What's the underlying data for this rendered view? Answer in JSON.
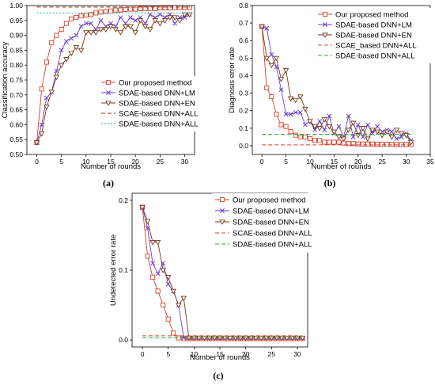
{
  "panel_labels": [
    "(a)",
    "(b)",
    "(c)"
  ],
  "chart_data": [
    {
      "type": "line",
      "panel": "(a)",
      "title": "",
      "xlabel": "Number of rounds",
      "ylabel": "Classification accuracy",
      "xlim": [
        -2,
        32
      ],
      "ylim": [
        0.5,
        1.0
      ],
      "xticks": [
        0,
        5,
        10,
        15,
        20,
        25,
        30
      ],
      "yticks": [
        0.5,
        0.55,
        0.6,
        0.65,
        0.7,
        0.75,
        0.8,
        0.85,
        0.9,
        0.95,
        1.0
      ],
      "ytick_decimals": 2,
      "legend_position": "bottom-right",
      "grid": false,
      "series": [
        {
          "name": "Our proposed method",
          "color": "#d9412b",
          "style": "solid",
          "marker": "square",
          "x": [
            0,
            1,
            2,
            3,
            4,
            5,
            6,
            7,
            8,
            9,
            10,
            11,
            12,
            13,
            14,
            15,
            16,
            17,
            18,
            19,
            20,
            21,
            22,
            23,
            24,
            25,
            26,
            27,
            28,
            29,
            30,
            31
          ],
          "y": [
            0.54,
            0.72,
            0.81,
            0.875,
            0.9,
            0.92,
            0.94,
            0.955,
            0.96,
            0.965,
            0.968,
            0.97,
            0.975,
            0.978,
            0.98,
            0.982,
            0.985,
            0.985,
            0.987,
            0.988,
            0.988,
            0.99,
            0.99,
            0.99,
            0.99,
            0.992,
            0.992,
            0.992,
            0.993,
            0.993,
            0.993,
            0.993
          ]
        },
        {
          "name": "SDAE-based DNN+LM",
          "color": "#6a3fd0",
          "style": "solid",
          "marker": "x",
          "x": [
            0,
            1,
            2,
            3,
            4,
            5,
            6,
            7,
            8,
            9,
            10,
            11,
            12,
            13,
            14,
            15,
            16,
            17,
            18,
            19,
            20,
            21,
            22,
            23,
            24,
            25,
            26,
            27,
            28,
            29,
            30,
            31
          ],
          "y": [
            0.54,
            0.6,
            0.69,
            0.71,
            0.78,
            0.85,
            0.88,
            0.89,
            0.9,
            0.93,
            0.94,
            0.94,
            0.92,
            0.95,
            0.93,
            0.94,
            0.93,
            0.96,
            0.94,
            0.96,
            0.95,
            0.96,
            0.94,
            0.97,
            0.96,
            0.97,
            0.96,
            0.97,
            0.94,
            0.96,
            0.96,
            0.97
          ]
        },
        {
          "name": "SDAE-based DNN+EN",
          "color": "#7a3a16",
          "style": "solid",
          "marker": "triangle-down",
          "x": [
            0,
            1,
            2,
            3,
            4,
            5,
            6,
            7,
            8,
            9,
            10,
            11,
            12,
            13,
            14,
            15,
            16,
            17,
            18,
            19,
            20,
            21,
            22,
            23,
            24,
            25,
            26,
            27,
            28,
            29,
            30,
            31
          ],
          "y": [
            0.54,
            0.57,
            0.66,
            0.71,
            0.76,
            0.8,
            0.82,
            0.84,
            0.86,
            0.85,
            0.91,
            0.91,
            0.91,
            0.92,
            0.92,
            0.93,
            0.92,
            0.91,
            0.93,
            0.93,
            0.91,
            0.95,
            0.93,
            0.92,
            0.95,
            0.94,
            0.95,
            0.96,
            0.96,
            0.95,
            0.97,
            0.97
          ]
        },
        {
          "name": "SCAE-based DNN+ALL",
          "color": "#7a3a16",
          "style": "dashed",
          "marker": "none",
          "x": [
            0,
            31
          ],
          "y": [
            0.995,
            0.995
          ]
        },
        {
          "name": "SDAE-based DNN+ALL",
          "color": "#2ab0a0",
          "style": "dotted",
          "marker": "none",
          "x": [
            0,
            31
          ],
          "y": [
            0.975,
            0.975
          ]
        }
      ]
    },
    {
      "type": "line",
      "panel": "(b)",
      "title": "",
      "xlabel": "Number of rounds",
      "ylabel": "Diagnosis error rate",
      "xlim": [
        -2,
        35
      ],
      "ylim": [
        -0.05,
        0.8
      ],
      "xticks": [
        0,
        5,
        10,
        15,
        20,
        25,
        30,
        35
      ],
      "yticks": [
        0.0,
        0.1,
        0.2,
        0.3,
        0.4,
        0.5,
        0.6,
        0.7,
        0.8
      ],
      "ytick_decimals": 1,
      "legend_position": "top-right",
      "grid": false,
      "series": [
        {
          "name": "Our proposed method",
          "color": "#d9412b",
          "style": "solid",
          "marker": "square",
          "x": [
            0,
            1,
            2,
            3,
            4,
            5,
            6,
            7,
            8,
            9,
            10,
            11,
            12,
            13,
            14,
            15,
            16,
            17,
            18,
            19,
            20,
            21,
            22,
            23,
            24,
            25,
            26,
            27,
            28,
            29,
            30,
            31
          ],
          "y": [
            0.68,
            0.33,
            0.28,
            0.18,
            0.12,
            0.11,
            0.08,
            0.06,
            0.05,
            0.05,
            0.04,
            0.03,
            0.03,
            0.02,
            0.02,
            0.02,
            0.02,
            0.015,
            0.012,
            0.012,
            0.01,
            0.01,
            0.01,
            0.01,
            0.008,
            0.008,
            0.008,
            0.008,
            0.007,
            0.007,
            0.007,
            0.007
          ]
        },
        {
          "name": "SDAE-based DNN+LM",
          "color": "#6a3fd0",
          "style": "solid",
          "marker": "x",
          "x": [
            0,
            1,
            2,
            3,
            4,
            5,
            6,
            7,
            8,
            9,
            10,
            11,
            12,
            13,
            14,
            15,
            16,
            17,
            18,
            19,
            20,
            21,
            22,
            23,
            24,
            25,
            26,
            27,
            28,
            29,
            30,
            31
          ],
          "y": [
            0.68,
            0.67,
            0.52,
            0.45,
            0.32,
            0.18,
            0.18,
            0.19,
            0.19,
            0.12,
            0.14,
            0.09,
            0.14,
            0.09,
            0.17,
            0.07,
            0.11,
            0.05,
            0.17,
            0.05,
            0.12,
            0.05,
            0.12,
            0.07,
            0.11,
            0.08,
            0.09,
            0.08,
            0.04,
            0.05,
            0.07,
            0.03
          ]
        },
        {
          "name": "SDAE-based DNN+EN",
          "color": "#7a3a16",
          "style": "solid",
          "marker": "triangle-down",
          "x": [
            0,
            1,
            2,
            3,
            4,
            5,
            6,
            7,
            8,
            9,
            10,
            11,
            12,
            13,
            14,
            15,
            16,
            17,
            18,
            19,
            20,
            21,
            22,
            23,
            24,
            25,
            26,
            27,
            28,
            29,
            30,
            31
          ],
          "y": [
            0.68,
            0.5,
            0.46,
            0.5,
            0.38,
            0.43,
            0.27,
            0.26,
            0.28,
            0.21,
            0.14,
            0.11,
            0.1,
            0.15,
            0.11,
            0.08,
            0.05,
            0.04,
            0.09,
            0.13,
            0.06,
            0.1,
            0.04,
            0.09,
            0.08,
            0.06,
            0.08,
            0.05,
            0.09,
            0.07,
            0.06,
            0.02
          ]
        },
        {
          "name": "SCAE_based DNN+ALL",
          "color": "#d9412b",
          "style": "dashed",
          "marker": "none",
          "x": [
            0,
            31
          ],
          "y": [
            0.005,
            0.005
          ]
        },
        {
          "name": "SDAE-based DNN+ALL",
          "color": "#2db22d",
          "style": "dashed",
          "marker": "none",
          "x": [
            0,
            31
          ],
          "y": [
            0.065,
            0.065
          ]
        }
      ]
    },
    {
      "type": "line",
      "panel": "(c)",
      "title": "",
      "xlabel": "Number of rounds",
      "ylabel": "Undetected error rate",
      "xlim": [
        -2,
        32
      ],
      "ylim": [
        -0.01,
        0.21
      ],
      "xticks": [
        0,
        5,
        10,
        15,
        20,
        25,
        30
      ],
      "yticks": [
        0.0,
        0.1,
        0.2
      ],
      "ytick_decimals": 1,
      "legend_position": "top-right",
      "grid": false,
      "series": [
        {
          "name": "Our proposed method",
          "color": "#d9412b",
          "style": "solid",
          "marker": "square",
          "x": [
            0,
            1,
            2,
            3,
            4,
            5,
            6,
            7,
            8,
            9,
            10,
            11,
            12,
            13,
            14,
            15,
            16,
            17,
            18,
            19,
            20,
            21,
            22,
            23,
            24,
            25,
            26,
            27,
            28,
            29,
            30,
            31
          ],
          "y": [
            0.19,
            0.12,
            0.09,
            0.07,
            0.05,
            0.03,
            0.01,
            0.003,
            0.002,
            0.002,
            0.002,
            0.002,
            0.002,
            0.002,
            0.002,
            0.002,
            0.002,
            0.002,
            0.002,
            0.002,
            0.002,
            0.002,
            0.002,
            0.002,
            0.002,
            0.002,
            0.002,
            0.002,
            0.002,
            0.002,
            0.002,
            0.002
          ]
        },
        {
          "name": "SDAE-based DNN+LM",
          "color": "#6a3fd0",
          "style": "solid",
          "marker": "x",
          "x": [
            0,
            1,
            2,
            3,
            4,
            5,
            6,
            7,
            8,
            9,
            10,
            11,
            12,
            13,
            14,
            15,
            16,
            17,
            18,
            19,
            20,
            21,
            22,
            23,
            24,
            25,
            26,
            27,
            28,
            29,
            30,
            31
          ],
          "y": [
            0.19,
            0.16,
            0.11,
            0.095,
            0.11,
            0.08,
            0.07,
            0.05,
            0.003,
            0.003,
            0.003,
            0.003,
            0.003,
            0.003,
            0.003,
            0.003,
            0.003,
            0.003,
            0.003,
            0.003,
            0.003,
            0.003,
            0.003,
            0.003,
            0.003,
            0.003,
            0.003,
            0.003,
            0.003,
            0.003,
            0.003,
            0.003
          ]
        },
        {
          "name": "SDAE-based DNN+EN",
          "color": "#7a3a16",
          "style": "solid",
          "marker": "triangle-down",
          "x": [
            0,
            1,
            2,
            3,
            4,
            5,
            6,
            7,
            8,
            9,
            10,
            11,
            12,
            13,
            14,
            15,
            16,
            17,
            18,
            19,
            20,
            21,
            22,
            23,
            24,
            25,
            26,
            27,
            28,
            29,
            30,
            31
          ],
          "y": [
            0.19,
            0.17,
            0.14,
            0.14,
            0.1,
            0.09,
            0.07,
            0.05,
            0.06,
            0.003,
            0.003,
            0.003,
            0.003,
            0.003,
            0.003,
            0.003,
            0.003,
            0.003,
            0.003,
            0.003,
            0.003,
            0.003,
            0.003,
            0.003,
            0.003,
            0.003,
            0.003,
            0.003,
            0.003,
            0.003,
            0.003,
            0.003
          ]
        },
        {
          "name": "SCAE-based DNN+ALL",
          "color": "#d9412b",
          "style": "dashed",
          "marker": "none",
          "x": [
            0,
            31
          ],
          "y": [
            0.006,
            0.006
          ]
        },
        {
          "name": "SDAE-based DNN+ALL",
          "color": "#2db22d",
          "style": "dashed",
          "marker": "none",
          "x": [
            0,
            31
          ],
          "y": [
            0.003,
            0.003
          ]
        }
      ]
    }
  ]
}
